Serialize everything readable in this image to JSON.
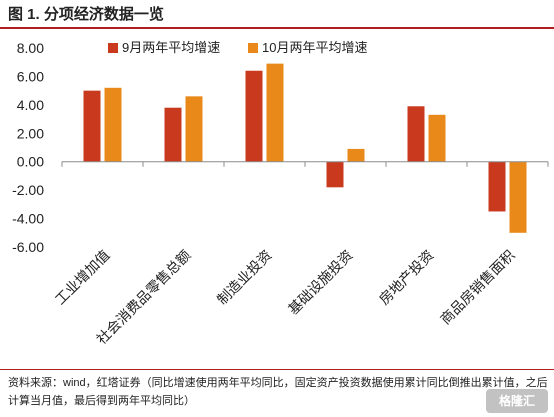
{
  "figure": {
    "title": "图 1. 分项经济数据一览",
    "source": "资料来源：wind，红塔证券（同比增速使用两年平均同比，固定资产投资数据使用累计同比倒推出累计值，之后计算当月值，最后得到两年平均同比）",
    "watermark": "格隆汇"
  },
  "chart_data": {
    "type": "bar",
    "categories": [
      "工业增加值",
      "社会消费品零售总额",
      "制造业投资",
      "基础设施投资",
      "房地产投资",
      "商品房销售面积"
    ],
    "series": [
      {
        "name": "9月两年平均增速",
        "values": [
          5.0,
          3.8,
          6.4,
          -1.8,
          3.9,
          -3.5
        ],
        "color": "#c9391e"
      },
      {
        "name": "10月两年平均增速",
        "values": [
          5.2,
          4.6,
          6.9,
          0.9,
          3.3,
          -5.0
        ],
        "color": "#e8891a"
      }
    ],
    "yticks": [
      "8.00",
      "6.00",
      "4.00",
      "2.00",
      "0.00",
      "-2.00",
      "-4.00",
      "-6.00"
    ],
    "ylim": [
      -6,
      8
    ],
    "grid": false,
    "legend_position": "top"
  }
}
